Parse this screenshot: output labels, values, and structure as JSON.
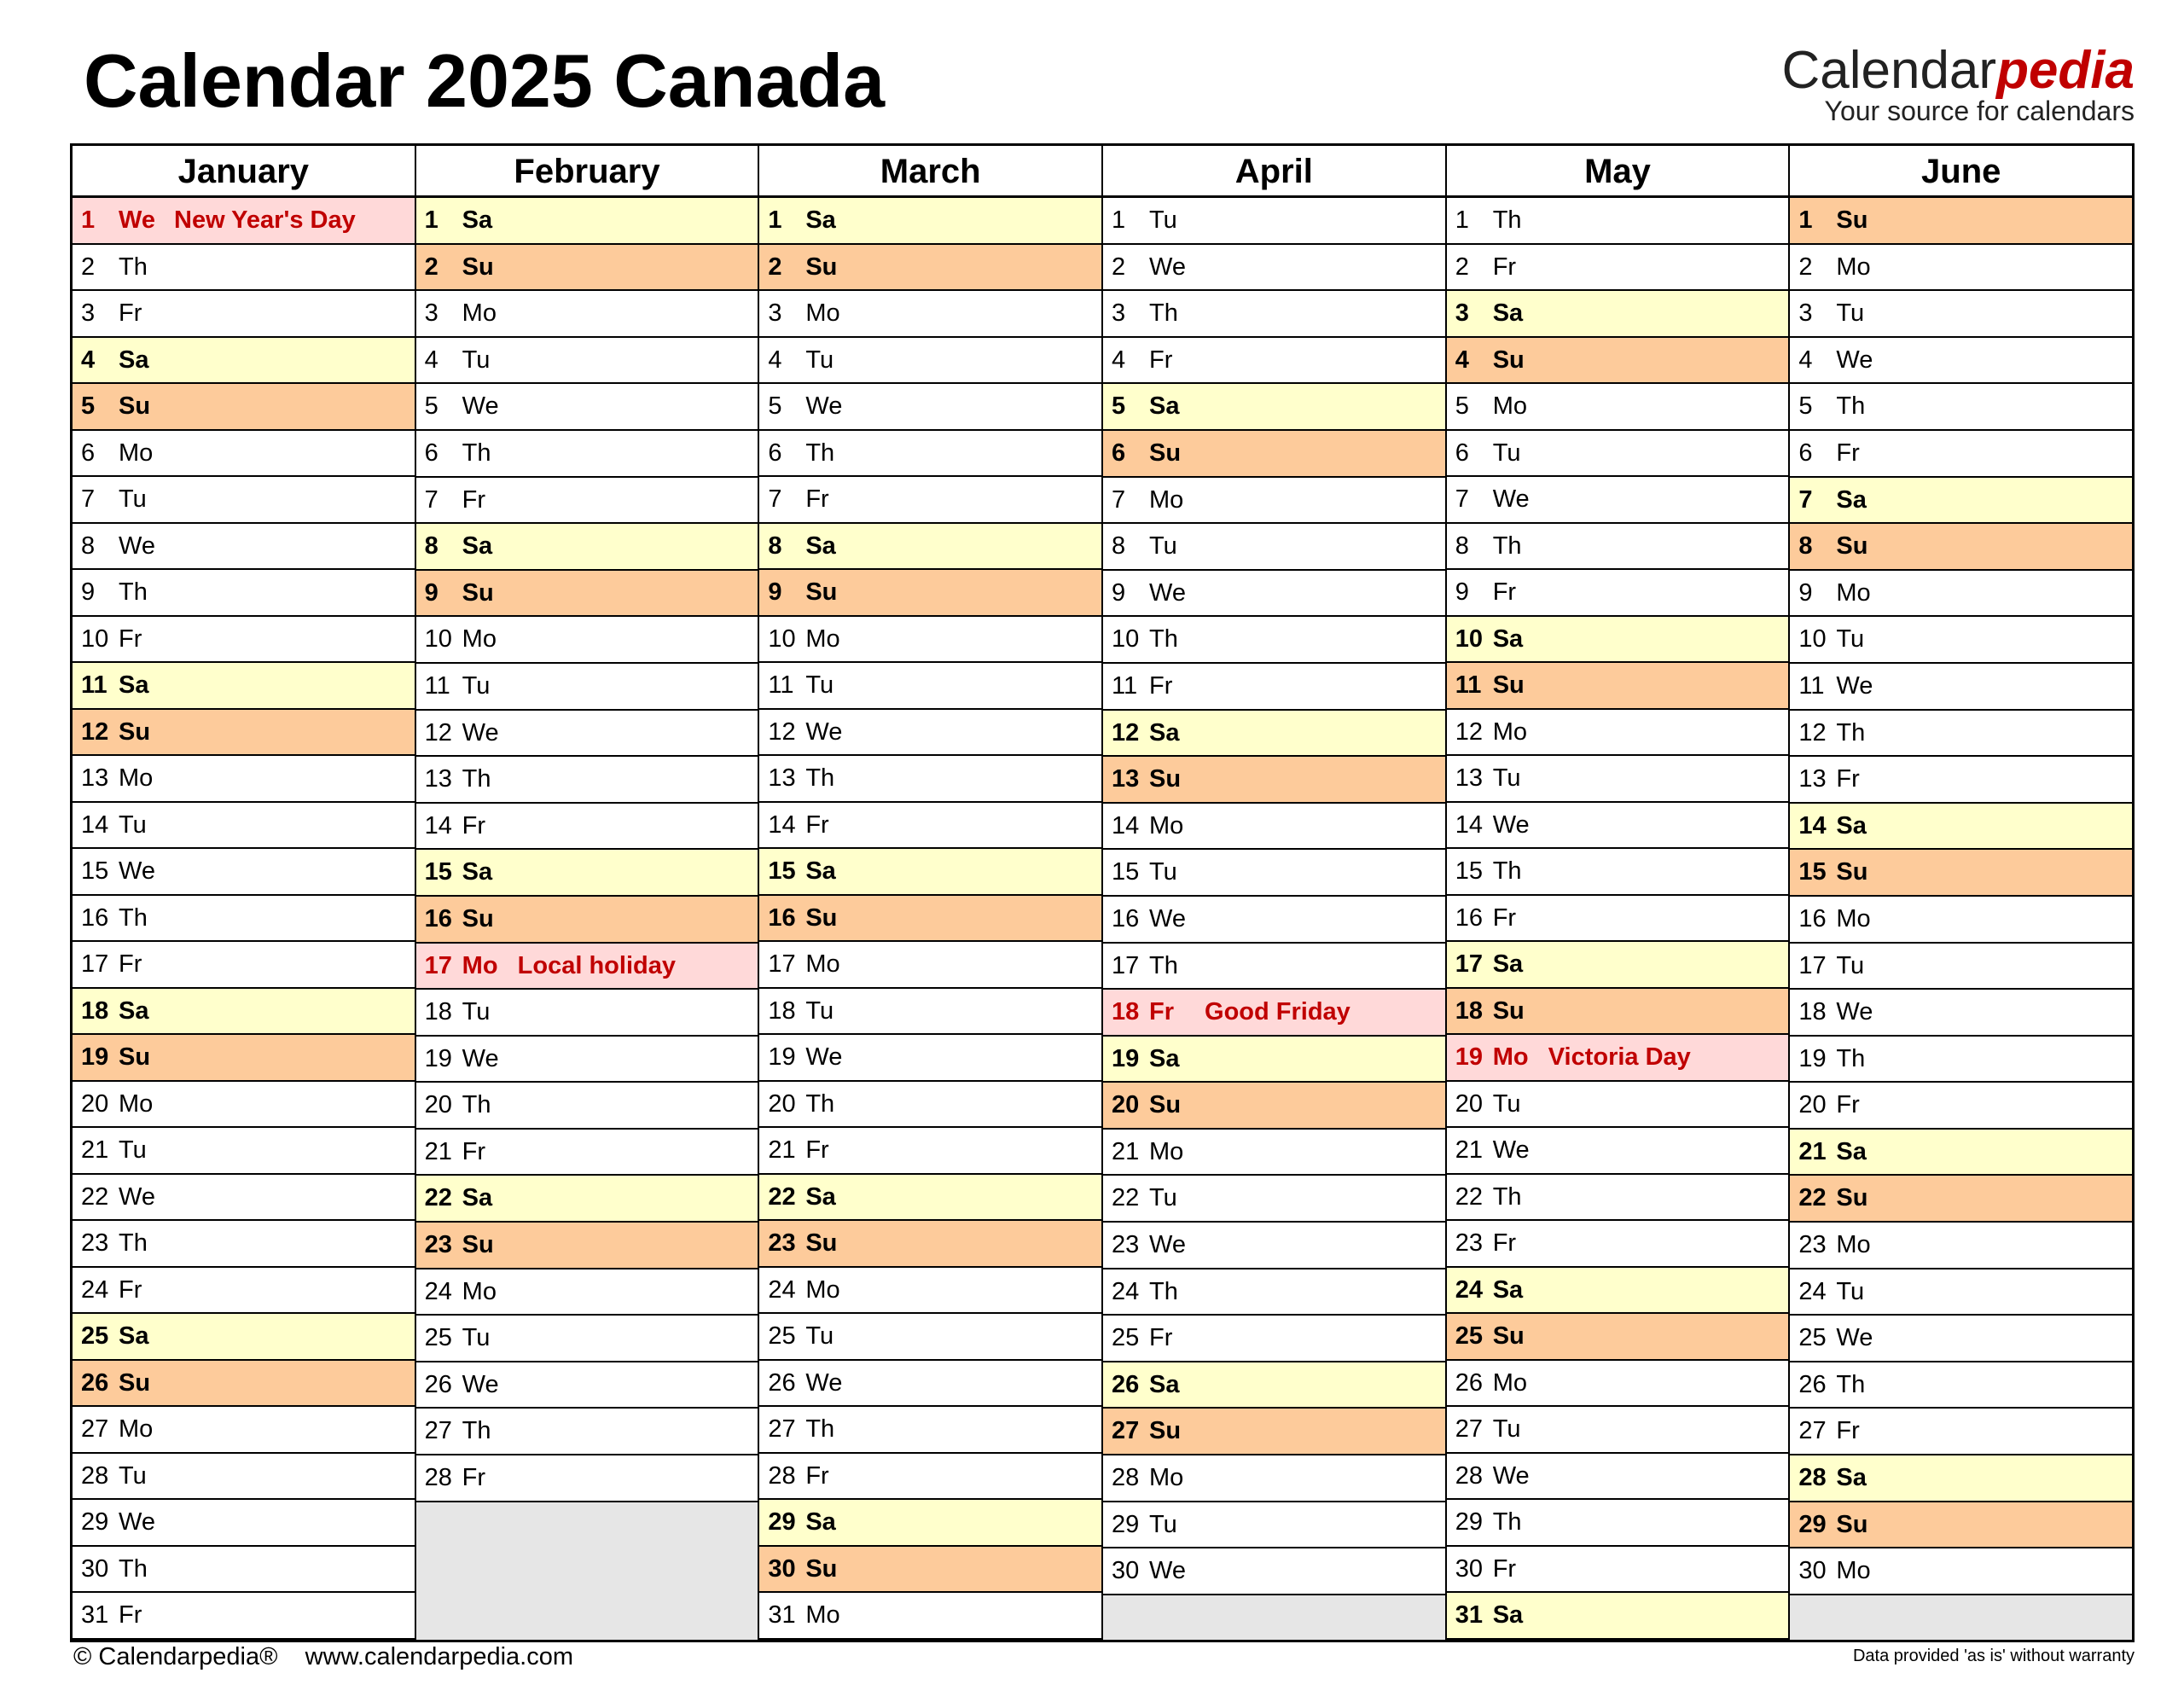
{
  "header": {
    "title": "Calendar 2025 Canada",
    "brand": "Calendar",
    "brand_suffix": "pedia",
    "tagline": "Your source for calendars"
  },
  "footer": {
    "copyright": "© Calendarpedia®",
    "url": "www.calendarpedia.com",
    "disclaimer": "Data provided 'as is' without warranty"
  },
  "months": [
    {
      "name": "January",
      "days": [
        {
          "d": 1,
          "w": "We",
          "c": "#ffd9d9",
          "h": "New Year's Day"
        },
        {
          "d": 2,
          "w": "Th"
        },
        {
          "d": 3,
          "w": "Fr"
        },
        {
          "d": 4,
          "w": "Sa",
          "c": "#ffffcc"
        },
        {
          "d": 5,
          "w": "Su",
          "c": "#fdcb9b"
        },
        {
          "d": 6,
          "w": "Mo"
        },
        {
          "d": 7,
          "w": "Tu"
        },
        {
          "d": 8,
          "w": "We"
        },
        {
          "d": 9,
          "w": "Th"
        },
        {
          "d": 10,
          "w": "Fr"
        },
        {
          "d": 11,
          "w": "Sa",
          "c": "#ffffcc"
        },
        {
          "d": 12,
          "w": "Su",
          "c": "#fdcb9b"
        },
        {
          "d": 13,
          "w": "Mo"
        },
        {
          "d": 14,
          "w": "Tu"
        },
        {
          "d": 15,
          "w": "We"
        },
        {
          "d": 16,
          "w": "Th"
        },
        {
          "d": 17,
          "w": "Fr"
        },
        {
          "d": 18,
          "w": "Sa",
          "c": "#ffffcc"
        },
        {
          "d": 19,
          "w": "Su",
          "c": "#fdcb9b"
        },
        {
          "d": 20,
          "w": "Mo"
        },
        {
          "d": 21,
          "w": "Tu"
        },
        {
          "d": 22,
          "w": "We"
        },
        {
          "d": 23,
          "w": "Th"
        },
        {
          "d": 24,
          "w": "Fr"
        },
        {
          "d": 25,
          "w": "Sa",
          "c": "#ffffcc"
        },
        {
          "d": 26,
          "w": "Su",
          "c": "#fdcb9b"
        },
        {
          "d": 27,
          "w": "Mo"
        },
        {
          "d": 28,
          "w": "Tu"
        },
        {
          "d": 29,
          "w": "We"
        },
        {
          "d": 30,
          "w": "Th"
        },
        {
          "d": 31,
          "w": "Fr"
        }
      ]
    },
    {
      "name": "February",
      "days": [
        {
          "d": 1,
          "w": "Sa",
          "c": "#ffffcc"
        },
        {
          "d": 2,
          "w": "Su",
          "c": "#fdcb9b"
        },
        {
          "d": 3,
          "w": "Mo"
        },
        {
          "d": 4,
          "w": "Tu"
        },
        {
          "d": 5,
          "w": "We"
        },
        {
          "d": 6,
          "w": "Th"
        },
        {
          "d": 7,
          "w": "Fr"
        },
        {
          "d": 8,
          "w": "Sa",
          "c": "#ffffcc"
        },
        {
          "d": 9,
          "w": "Su",
          "c": "#fdcb9b"
        },
        {
          "d": 10,
          "w": "Mo"
        },
        {
          "d": 11,
          "w": "Tu"
        },
        {
          "d": 12,
          "w": "We"
        },
        {
          "d": 13,
          "w": "Th"
        },
        {
          "d": 14,
          "w": "Fr"
        },
        {
          "d": 15,
          "w": "Sa",
          "c": "#ffffcc"
        },
        {
          "d": 16,
          "w": "Su",
          "c": "#fdcb9b"
        },
        {
          "d": 17,
          "w": "Mo",
          "c": "#ffd9d9",
          "h": "Local holiday"
        },
        {
          "d": 18,
          "w": "Tu"
        },
        {
          "d": 19,
          "w": "We"
        },
        {
          "d": 20,
          "w": "Th"
        },
        {
          "d": 21,
          "w": "Fr"
        },
        {
          "d": 22,
          "w": "Sa",
          "c": "#ffffcc"
        },
        {
          "d": 23,
          "w": "Su",
          "c": "#fdcb9b"
        },
        {
          "d": 24,
          "w": "Mo"
        },
        {
          "d": 25,
          "w": "Tu"
        },
        {
          "d": 26,
          "w": "We"
        },
        {
          "d": 27,
          "w": "Th"
        },
        {
          "d": 28,
          "w": "Fr"
        }
      ]
    },
    {
      "name": "March",
      "days": [
        {
          "d": 1,
          "w": "Sa",
          "c": "#ffffcc"
        },
        {
          "d": 2,
          "w": "Su",
          "c": "#fdcb9b"
        },
        {
          "d": 3,
          "w": "Mo"
        },
        {
          "d": 4,
          "w": "Tu"
        },
        {
          "d": 5,
          "w": "We"
        },
        {
          "d": 6,
          "w": "Th"
        },
        {
          "d": 7,
          "w": "Fr"
        },
        {
          "d": 8,
          "w": "Sa",
          "c": "#ffffcc"
        },
        {
          "d": 9,
          "w": "Su",
          "c": "#fdcb9b"
        },
        {
          "d": 10,
          "w": "Mo"
        },
        {
          "d": 11,
          "w": "Tu"
        },
        {
          "d": 12,
          "w": "We"
        },
        {
          "d": 13,
          "w": "Th"
        },
        {
          "d": 14,
          "w": "Fr"
        },
        {
          "d": 15,
          "w": "Sa",
          "c": "#ffffcc"
        },
        {
          "d": 16,
          "w": "Su",
          "c": "#fdcb9b"
        },
        {
          "d": 17,
          "w": "Mo"
        },
        {
          "d": 18,
          "w": "Tu"
        },
        {
          "d": 19,
          "w": "We"
        },
        {
          "d": 20,
          "w": "Th"
        },
        {
          "d": 21,
          "w": "Fr"
        },
        {
          "d": 22,
          "w": "Sa",
          "c": "#ffffcc"
        },
        {
          "d": 23,
          "w": "Su",
          "c": "#fdcb9b"
        },
        {
          "d": 24,
          "w": "Mo"
        },
        {
          "d": 25,
          "w": "Tu"
        },
        {
          "d": 26,
          "w": "We"
        },
        {
          "d": 27,
          "w": "Th"
        },
        {
          "d": 28,
          "w": "Fr"
        },
        {
          "d": 29,
          "w": "Sa",
          "c": "#ffffcc"
        },
        {
          "d": 30,
          "w": "Su",
          "c": "#fdcb9b"
        },
        {
          "d": 31,
          "w": "Mo"
        }
      ]
    },
    {
      "name": "April",
      "days": [
        {
          "d": 1,
          "w": "Tu"
        },
        {
          "d": 2,
          "w": "We"
        },
        {
          "d": 3,
          "w": "Th"
        },
        {
          "d": 4,
          "w": "Fr"
        },
        {
          "d": 5,
          "w": "Sa",
          "c": "#ffffcc"
        },
        {
          "d": 6,
          "w": "Su",
          "c": "#fdcb9b"
        },
        {
          "d": 7,
          "w": "Mo"
        },
        {
          "d": 8,
          "w": "Tu"
        },
        {
          "d": 9,
          "w": "We"
        },
        {
          "d": 10,
          "w": "Th"
        },
        {
          "d": 11,
          "w": "Fr"
        },
        {
          "d": 12,
          "w": "Sa",
          "c": "#ffffcc"
        },
        {
          "d": 13,
          "w": "Su",
          "c": "#fdcb9b"
        },
        {
          "d": 14,
          "w": "Mo"
        },
        {
          "d": 15,
          "w": "Tu"
        },
        {
          "d": 16,
          "w": "We"
        },
        {
          "d": 17,
          "w": "Th"
        },
        {
          "d": 18,
          "w": "Fr",
          "c": "#ffd9d9",
          "h": "Good Friday"
        },
        {
          "d": 19,
          "w": "Sa",
          "c": "#ffffcc"
        },
        {
          "d": 20,
          "w": "Su",
          "c": "#fdcb9b"
        },
        {
          "d": 21,
          "w": "Mo"
        },
        {
          "d": 22,
          "w": "Tu"
        },
        {
          "d": 23,
          "w": "We"
        },
        {
          "d": 24,
          "w": "Th"
        },
        {
          "d": 25,
          "w": "Fr"
        },
        {
          "d": 26,
          "w": "Sa",
          "c": "#ffffcc"
        },
        {
          "d": 27,
          "w": "Su",
          "c": "#fdcb9b"
        },
        {
          "d": 28,
          "w": "Mo"
        },
        {
          "d": 29,
          "w": "Tu"
        },
        {
          "d": 30,
          "w": "We"
        }
      ]
    },
    {
      "name": "May",
      "days": [
        {
          "d": 1,
          "w": "Th"
        },
        {
          "d": 2,
          "w": "Fr"
        },
        {
          "d": 3,
          "w": "Sa",
          "c": "#ffffcc"
        },
        {
          "d": 4,
          "w": "Su",
          "c": "#fdcb9b"
        },
        {
          "d": 5,
          "w": "Mo"
        },
        {
          "d": 6,
          "w": "Tu"
        },
        {
          "d": 7,
          "w": "We"
        },
        {
          "d": 8,
          "w": "Th"
        },
        {
          "d": 9,
          "w": "Fr"
        },
        {
          "d": 10,
          "w": "Sa",
          "c": "#ffffcc"
        },
        {
          "d": 11,
          "w": "Su",
          "c": "#fdcb9b"
        },
        {
          "d": 12,
          "w": "Mo"
        },
        {
          "d": 13,
          "w": "Tu"
        },
        {
          "d": 14,
          "w": "We"
        },
        {
          "d": 15,
          "w": "Th"
        },
        {
          "d": 16,
          "w": "Fr"
        },
        {
          "d": 17,
          "w": "Sa",
          "c": "#ffffcc"
        },
        {
          "d": 18,
          "w": "Su",
          "c": "#fdcb9b"
        },
        {
          "d": 19,
          "w": "Mo",
          "c": "#ffd9d9",
          "h": "Victoria Day"
        },
        {
          "d": 20,
          "w": "Tu"
        },
        {
          "d": 21,
          "w": "We"
        },
        {
          "d": 22,
          "w": "Th"
        },
        {
          "d": 23,
          "w": "Fr"
        },
        {
          "d": 24,
          "w": "Sa",
          "c": "#ffffcc"
        },
        {
          "d": 25,
          "w": "Su",
          "c": "#fdcb9b"
        },
        {
          "d": 26,
          "w": "Mo"
        },
        {
          "d": 27,
          "w": "Tu"
        },
        {
          "d": 28,
          "w": "We"
        },
        {
          "d": 29,
          "w": "Th"
        },
        {
          "d": 30,
          "w": "Fr"
        },
        {
          "d": 31,
          "w": "Sa",
          "c": "#ffffcc"
        }
      ]
    },
    {
      "name": "June",
      "days": [
        {
          "d": 1,
          "w": "Su",
          "c": "#fdcb9b"
        },
        {
          "d": 2,
          "w": "Mo"
        },
        {
          "d": 3,
          "w": "Tu"
        },
        {
          "d": 4,
          "w": "We"
        },
        {
          "d": 5,
          "w": "Th"
        },
        {
          "d": 6,
          "w": "Fr"
        },
        {
          "d": 7,
          "w": "Sa",
          "c": "#ffffcc"
        },
        {
          "d": 8,
          "w": "Su",
          "c": "#fdcb9b"
        },
        {
          "d": 9,
          "w": "Mo"
        },
        {
          "d": 10,
          "w": "Tu"
        },
        {
          "d": 11,
          "w": "We"
        },
        {
          "d": 12,
          "w": "Th"
        },
        {
          "d": 13,
          "w": "Fr"
        },
        {
          "d": 14,
          "w": "Sa",
          "c": "#ffffcc"
        },
        {
          "d": 15,
          "w": "Su",
          "c": "#fdcb9b"
        },
        {
          "d": 16,
          "w": "Mo"
        },
        {
          "d": 17,
          "w": "Tu"
        },
        {
          "d": 18,
          "w": "We"
        },
        {
          "d": 19,
          "w": "Th"
        },
        {
          "d": 20,
          "w": "Fr"
        },
        {
          "d": 21,
          "w": "Sa",
          "c": "#ffffcc"
        },
        {
          "d": 22,
          "w": "Su",
          "c": "#fdcb9b"
        },
        {
          "d": 23,
          "w": "Mo"
        },
        {
          "d": 24,
          "w": "Tu"
        },
        {
          "d": 25,
          "w": "We"
        },
        {
          "d": 26,
          "w": "Th"
        },
        {
          "d": 27,
          "w": "Fr"
        },
        {
          "d": 28,
          "w": "Sa",
          "c": "#ffffcc"
        },
        {
          "d": 29,
          "w": "Su",
          "c": "#fdcb9b"
        },
        {
          "d": 30,
          "w": "Mo"
        }
      ]
    }
  ]
}
